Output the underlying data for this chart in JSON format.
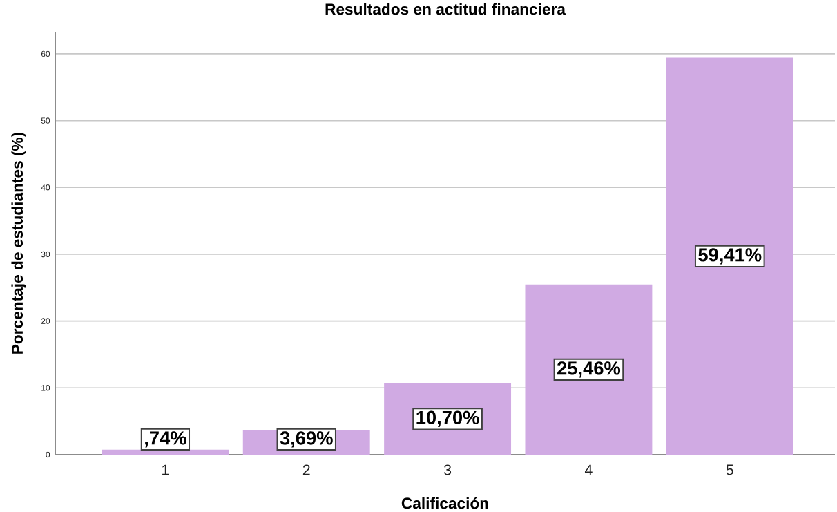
{
  "chart_data": {
    "type": "bar",
    "title": "Resultados en actitud financiera",
    "xlabel": "Calificación",
    "ylabel": "Porcentaje de estudiantes (%)",
    "categories": [
      "1",
      "2",
      "3",
      "4",
      "5"
    ],
    "values": [
      0.74,
      3.69,
      10.7,
      25.46,
      59.41
    ],
    "value_labels": [
      ",74%",
      "3,69%",
      "10,70%",
      "25,46%",
      "59,41%"
    ],
    "color": "#d0aae3",
    "ylim": [
      0,
      63.3
    ],
    "yticks": [
      0,
      10,
      20,
      30,
      40,
      50,
      60
    ],
    "grid": "y"
  }
}
